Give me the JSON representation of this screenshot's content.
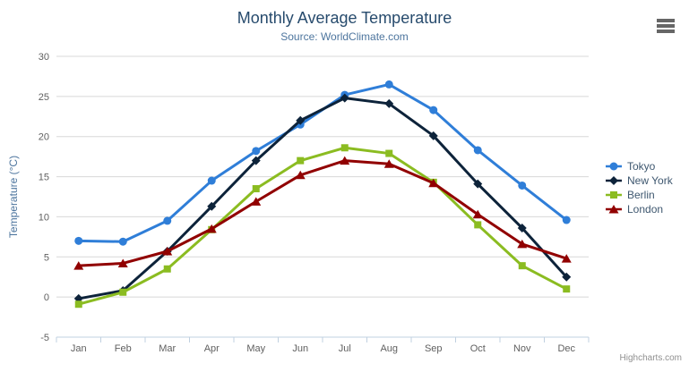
{
  "credits_label": "Highcharts.com",
  "icons": {
    "context_menu": "hamburger-menu-icon"
  },
  "colors": {
    "title": "#274b6d",
    "subtitle": "#4d759e",
    "axis_labels": "#606060",
    "axis_line": "#c0d0e0",
    "gridline": "#d8d8d8",
    "legend_text": "#3e576f",
    "credits": "#909090",
    "hamburger": "#666666"
  },
  "chart_data": {
    "type": "line",
    "title": "Monthly Average Temperature",
    "subtitle": "Source: WorldClimate.com",
    "categories": [
      "Jan",
      "Feb",
      "Mar",
      "Apr",
      "May",
      "Jun",
      "Jul",
      "Aug",
      "Sep",
      "Oct",
      "Nov",
      "Dec"
    ],
    "xlabel": "",
    "ylabel": "Temperature (°C)",
    "ylim": [
      -5,
      30
    ],
    "ytick_step": 5,
    "yticks": [
      -5,
      0,
      5,
      10,
      15,
      20,
      25,
      30
    ],
    "grid": true,
    "legend_position": "right",
    "series": [
      {
        "name": "Tokyo",
        "color": "#2f7ed8",
        "marker": "circle",
        "values": [
          7.0,
          6.9,
          9.5,
          14.5,
          18.2,
          21.5,
          25.2,
          26.5,
          23.3,
          18.3,
          13.9,
          9.6
        ]
      },
      {
        "name": "New York",
        "color": "#0d233a",
        "marker": "diamond",
        "values": [
          -0.2,
          0.8,
          5.7,
          11.3,
          17.0,
          22.0,
          24.8,
          24.1,
          20.1,
          14.1,
          8.6,
          2.5
        ]
      },
      {
        "name": "Berlin",
        "color": "#8bbc21",
        "marker": "square",
        "values": [
          -0.9,
          0.6,
          3.5,
          8.4,
          13.5,
          17.0,
          18.6,
          17.9,
          14.3,
          9.0,
          3.9,
          1.0
        ]
      },
      {
        "name": "London",
        "color": "#910000",
        "marker": "triangle",
        "values": [
          3.9,
          4.2,
          5.7,
          8.5,
          11.9,
          15.2,
          17.0,
          16.6,
          14.2,
          10.3,
          6.6,
          4.8
        ]
      }
    ]
  }
}
